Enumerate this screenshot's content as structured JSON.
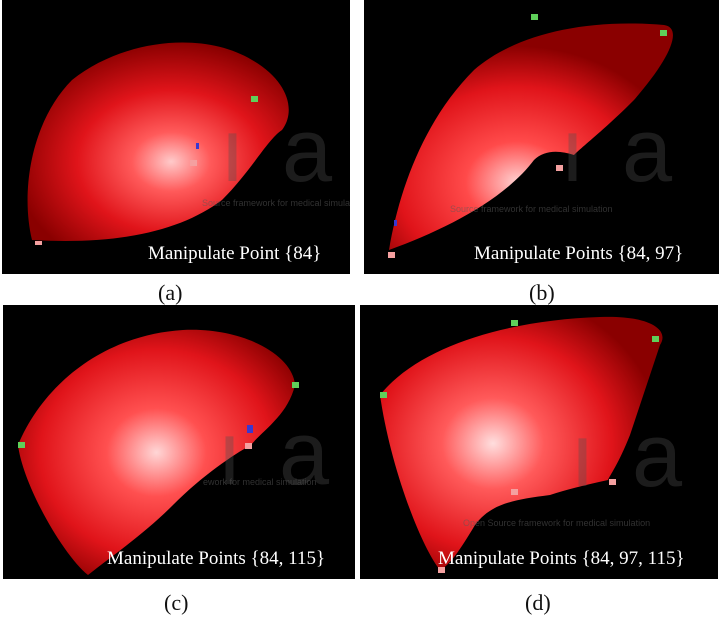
{
  "panels": [
    {
      "id": "a",
      "sub_label": "(a)",
      "overlay": "Manipulate Point {84}",
      "watermark": "Source framework for medical simulation"
    },
    {
      "id": "b",
      "sub_label": "(b)",
      "overlay": "Manipulate Points {84, 97}",
      "watermark": "Source framework for medical simulation"
    },
    {
      "id": "c",
      "sub_label": "(c)",
      "overlay": "Manipulate Points {84, 115}",
      "watermark": "ework for medical simulation"
    },
    {
      "id": "d",
      "sub_label": "(d)",
      "overlay": "Manipulate Points {84, 97, 115}",
      "watermark": "Open Source framework for medical simulation"
    }
  ],
  "colors": {
    "organ": "#e0141a",
    "organ_highlight": "#ffd6d6",
    "fixed_point": "#5fd05a",
    "manipulated_point": "#f4a0a0",
    "target_point": "#3a38d0",
    "background": "#000000"
  }
}
